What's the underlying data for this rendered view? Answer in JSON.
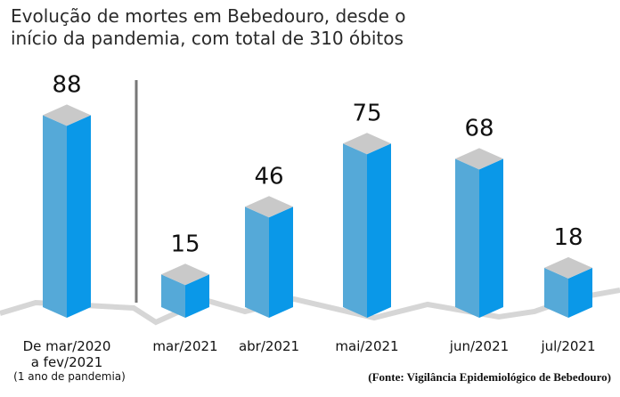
{
  "chart_data": {
    "type": "bar3d",
    "title": "Evolução de mortes em Bebedouro, desde o início da pandemia, com total de 310 óbitos",
    "categories": [
      "De mar/2020 a fev/2021",
      "mar/2021",
      "abr/2021",
      "mai/2021",
      "jun/2021",
      "jul/2021"
    ],
    "values": [
      88,
      15,
      46,
      75,
      68,
      18
    ],
    "color": "#0a98e8",
    "annotations": [
      "(1 ano de pandemia)",
      "(Fonte: Vigilância Epidemiológico de Bebedouro)"
    ]
  }
}
